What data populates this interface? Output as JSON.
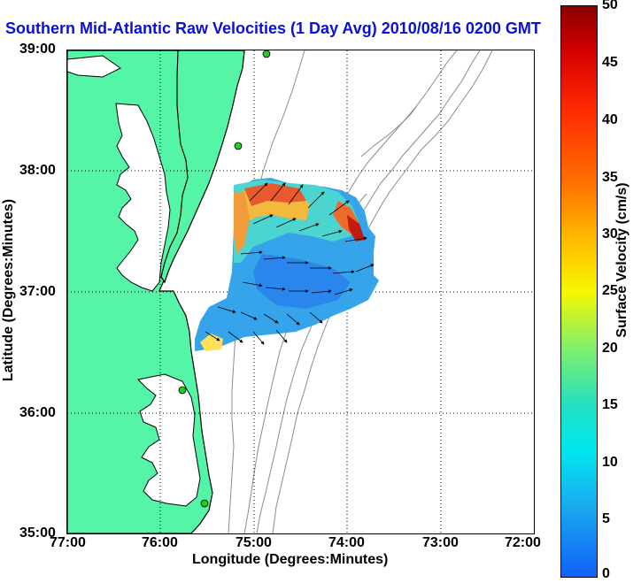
{
  "title": "Southern Mid-Atlantic Raw Velocities (1 Day Avg) 2010/08/16 0200 GMT",
  "axes": {
    "xlabel": "Longitude (Degrees:Minutes)",
    "ylabel": "Latitude (Degrees:Minutes)",
    "x_ticks": [
      "77:00",
      "76:00",
      "75:00",
      "74:00",
      "73:00",
      "72:00"
    ],
    "y_ticks": [
      "39:00",
      "38:00",
      "37:00",
      "36:00",
      "35:00"
    ]
  },
  "colorbar": {
    "label": "Surface Velocity (cm/s)",
    "ticks": [
      "50",
      "45",
      "40",
      "35",
      "30",
      "25",
      "20",
      "15",
      "10",
      "5",
      "0"
    ],
    "range": [
      0,
      50
    ]
  },
  "colors": {
    "land": "#54f5a6",
    "title": "#0b10d8",
    "coast": "#000000",
    "bathymetry": "#8c8c8c",
    "station": "#22cc22"
  },
  "chart_data": {
    "type": "heatmap",
    "lon_range": [
      -77,
      -72
    ],
    "lat_range": [
      35,
      39
    ],
    "value_range": [
      0,
      50
    ],
    "units": "cm/s"
  }
}
